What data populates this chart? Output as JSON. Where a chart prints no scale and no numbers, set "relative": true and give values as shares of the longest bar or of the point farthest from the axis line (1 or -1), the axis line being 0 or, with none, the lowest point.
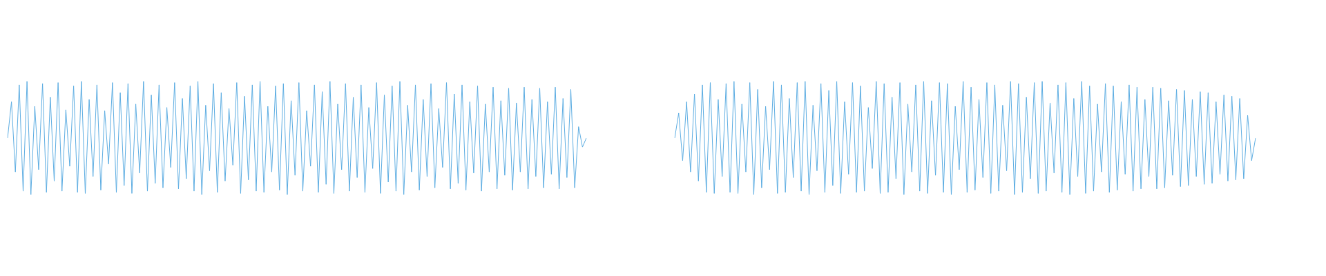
{
  "chart_data": [
    {
      "type": "line",
      "relative": true,
      "color": "#5dade2",
      "categories": [
        null,
        null,
        null,
        null,
        null,
        null,
        null,
        null,
        null,
        null,
        null,
        null,
        null,
        null,
        null,
        null,
        null,
        null,
        null,
        null,
        null,
        null,
        null,
        null,
        null,
        null,
        null,
        null,
        null,
        null,
        null,
        null,
        null,
        null,
        null,
        null,
        null,
        null,
        null,
        null,
        null,
        null,
        null,
        null,
        null,
        null,
        null,
        null,
        null,
        null,
        null,
        null,
        null,
        null,
        null,
        null,
        null,
        null,
        null,
        null,
        null,
        null,
        null,
        null,
        null,
        null,
        null,
        null,
        null,
        null,
        null,
        null,
        null,
        null,
        null,
        null,
        null,
        null,
        null,
        null,
        null,
        null,
        null,
        null,
        null,
        null,
        null,
        null,
        null,
        null,
        null,
        null,
        null,
        null,
        null,
        null,
        null,
        null,
        null,
        null,
        null,
        null,
        null,
        null,
        null,
        null,
        null,
        null,
        null,
        null,
        null,
        null,
        null,
        null,
        null,
        null,
        null,
        null,
        null,
        null,
        null,
        null,
        null,
        null,
        null,
        null,
        null,
        null,
        null,
        null,
        null,
        null,
        null,
        null,
        null,
        null,
        null,
        null,
        null,
        null,
        null,
        null,
        null,
        null,
        null,
        null,
        null,
        null,
        null,
        null
      ],
      "values": [
        0.5,
        0.82,
        0.2,
        0.97,
        0.03,
        1.0,
        0.0,
        0.78,
        0.22,
        0.98,
        0.02,
        0.86,
        0.12,
        0.99,
        0.03,
        0.75,
        0.25,
        0.96,
        0.02,
        1.0,
        0.01,
        0.84,
        0.16,
        0.97,
        0.04,
        0.74,
        0.27,
        0.99,
        0.02,
        0.9,
        0.08,
        0.98,
        0.01,
        0.8,
        0.19,
        1.0,
        0.03,
        0.88,
        0.1,
        0.97,
        0.06,
        0.77,
        0.24,
        0.99,
        0.05,
        0.85,
        0.14,
        0.96,
        0.03,
        1.0,
        0.0,
        0.79,
        0.21,
        0.98,
        0.02,
        0.9,
        0.12,
        0.76,
        0.26,
        0.99,
        0.01,
        0.87,
        0.13,
        0.97,
        0.03,
        1.0,
        0.02,
        0.78,
        0.2,
        0.96,
        0.04,
        0.98,
        0.0,
        0.83,
        0.17,
        0.99,
        0.03,
        0.74,
        0.25,
        0.97,
        0.02,
        0.91,
        0.09,
        1.0,
        0.01,
        0.8,
        0.22,
        0.98,
        0.03,
        0.86,
        0.15,
        0.97,
        0.02,
        0.77,
        0.23,
        0.99,
        0.01,
        0.88,
        0.11,
        0.96,
        0.03,
        1.0,
        0.0,
        0.79,
        0.2,
        0.97,
        0.04,
        0.84,
        0.16,
        0.98,
        0.06,
        0.76,
        0.24,
        0.99,
        0.05,
        0.89,
        0.1,
        0.97,
        0.04,
        0.82,
        0.19,
        0.96,
        0.03,
        0.8,
        0.2,
        0.95,
        0.05,
        0.83,
        0.17,
        0.94,
        0.04,
        0.81,
        0.2,
        0.95,
        0.05,
        0.84,
        0.16,
        0.94,
        0.06,
        0.82,
        0.18,
        0.95,
        0.05,
        0.85,
        0.15,
        0.93,
        0.06,
        0.6,
        0.42,
        0.5
      ]
    },
    {
      "type": "line",
      "relative": true,
      "color": "#5dade2",
      "categories": [
        null,
        null,
        null,
        null,
        null,
        null,
        null,
        null,
        null,
        null,
        null,
        null,
        null,
        null,
        null,
        null,
        null,
        null,
        null,
        null,
        null,
        null,
        null,
        null,
        null,
        null,
        null,
        null,
        null,
        null,
        null,
        null,
        null,
        null,
        null,
        null,
        null,
        null,
        null,
        null,
        null,
        null,
        null,
        null,
        null,
        null,
        null,
        null,
        null,
        null,
        null,
        null,
        null,
        null,
        null,
        null,
        null,
        null,
        null,
        null,
        null,
        null,
        null,
        null,
        null,
        null,
        null,
        null,
        null,
        null,
        null,
        null,
        null,
        null,
        null,
        null,
        null,
        null,
        null,
        null,
        null,
        null,
        null,
        null,
        null,
        null,
        null,
        null,
        null,
        null,
        null,
        null,
        null,
        null,
        null,
        null,
        null,
        null,
        null,
        null,
        null,
        null,
        null,
        null,
        null,
        null,
        null,
        null,
        null,
        null,
        null,
        null,
        null,
        null,
        null,
        null,
        null,
        null,
        null,
        null,
        null,
        null,
        null,
        null,
        null,
        null,
        null,
        null,
        null,
        null,
        null,
        null,
        null,
        null,
        null,
        null,
        null,
        null,
        null,
        null,
        null,
        null,
        null,
        null,
        null,
        null,
        null,
        null
      ],
      "values": [
        0.5,
        0.72,
        0.3,
        0.82,
        0.2,
        0.89,
        0.12,
        0.97,
        0.02,
        0.99,
        0.01,
        0.84,
        0.16,
        0.98,
        0.02,
        1.0,
        0.01,
        0.8,
        0.2,
        0.99,
        0.0,
        0.93,
        0.06,
        0.78,
        0.22,
        1.0,
        0.01,
        0.97,
        0.02,
        0.85,
        0.15,
        0.99,
        0.03,
        1.0,
        0.0,
        0.79,
        0.21,
        0.98,
        0.02,
        0.92,
        0.08,
        1.0,
        0.01,
        0.82,
        0.18,
        0.99,
        0.02,
        0.96,
        0.03,
        0.77,
        0.23,
        1.0,
        0.01,
        0.98,
        0.02,
        0.86,
        0.14,
        0.99,
        0.0,
        0.8,
        0.2,
        0.97,
        0.03,
        1.0,
        0.01,
        0.83,
        0.17,
        0.99,
        0.02,
        0.98,
        0.0,
        0.78,
        0.22,
        1.0,
        0.02,
        0.95,
        0.04,
        0.84,
        0.15,
        0.99,
        0.01,
        0.97,
        0.03,
        0.79,
        0.21,
        1.0,
        0.0,
        0.98,
        0.02,
        0.86,
        0.14,
        0.99,
        0.01,
        1.0,
        0.03,
        0.81,
        0.19,
        0.97,
        0.02,
        0.99,
        0.0,
        0.85,
        0.16,
        1.0,
        0.01,
        0.96,
        0.03,
        0.8,
        0.2,
        0.98,
        0.02,
        0.96,
        0.04,
        0.82,
        0.18,
        0.97,
        0.03,
        0.95,
        0.05,
        0.84,
        0.16,
        0.95,
        0.05,
        0.94,
        0.06,
        0.83,
        0.17,
        0.93,
        0.07,
        0.92,
        0.08,
        0.84,
        0.16,
        0.91,
        0.09,
        0.9,
        0.1,
        0.82,
        0.18,
        0.88,
        0.12,
        0.87,
        0.13,
        0.85,
        0.14,
        0.7,
        0.3,
        0.5
      ]
    }
  ]
}
